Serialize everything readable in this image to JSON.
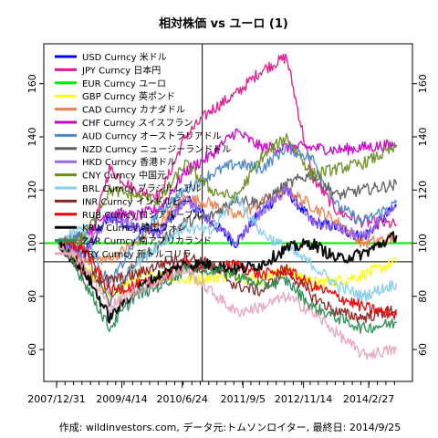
{
  "chart_data": {
    "type": "line",
    "title": "相対株価 vs ユーロ (1)",
    "caption": "作成: wildinvestors.com, データ元:トムソンロイター, 最終日: 2014/9/25",
    "x_ticks": [
      "2007/12/31",
      "2009/4/14",
      "2010/6/24",
      "2011/9/5",
      "2012/11/14",
      "2014/2/27"
    ],
    "x_range": [
      "2007-12-31",
      "2014-09-25"
    ],
    "y_ticks": [
      60,
      80,
      100,
      120,
      140,
      160
    ],
    "ylim": [
      48,
      175
    ],
    "reference_lines": [
      {
        "orientation": "horizontal",
        "value": 100,
        "color": "#00ee00",
        "series": "EUR Curncy ユーロ"
      },
      {
        "orientation": "horizontal",
        "value": 93,
        "color": "#000000"
      },
      {
        "orientation": "vertical",
        "value": "2010-11-15",
        "color": "#000000"
      }
    ],
    "legend_position": "top-left",
    "series": [
      {
        "name": "USD Curncy 米ドル",
        "color": "#0000ff",
        "x": [
          "2008-01",
          "2008-07",
          "2009-01",
          "2009-07",
          "2010-01",
          "2010-07",
          "2011-01",
          "2011-07",
          "2012-01",
          "2012-07",
          "2013-01",
          "2013-07",
          "2014-01",
          "2014-09"
        ],
        "values": [
          100,
          96,
          110,
          106,
          104,
          117,
          108,
          100,
          112,
          120,
          108,
          106,
          102,
          114
        ]
      },
      {
        "name": "JPY Curncy 日本円",
        "color": "#e6198c",
        "x": [
          "2008-01",
          "2008-07",
          "2009-01",
          "2009-07",
          "2010-01",
          "2010-07",
          "2011-01",
          "2011-07",
          "2012-01",
          "2012-07",
          "2013-01",
          "2013-07",
          "2014-01",
          "2014-09"
        ],
        "values": [
          100,
          92,
          128,
          120,
          118,
          140,
          150,
          156,
          165,
          170,
          125,
          112,
          108,
          107
        ]
      },
      {
        "name": "EUR Curncy ユーロ",
        "color": "#00ee00",
        "x": [
          "2008-01",
          "2014-09"
        ],
        "values": [
          100,
          100
        ]
      },
      {
        "name": "GBP Curncy 英ポンド",
        "color": "#ffff00",
        "x": [
          "2008-01",
          "2008-07",
          "2009-01",
          "2009-07",
          "2010-01",
          "2010-07",
          "2011-01",
          "2011-07",
          "2012-01",
          "2012-07",
          "2013-01",
          "2013-07",
          "2014-01",
          "2014-09"
        ],
        "values": [
          100,
          92,
          80,
          87,
          88,
          86,
          87,
          88,
          86,
          90,
          85,
          86,
          88,
          93
        ]
      },
      {
        "name": "CAD Curncy カナダドル",
        "color": "#f0804c",
        "x": [
          "2008-01",
          "2008-07",
          "2009-01",
          "2009-07",
          "2010-01",
          "2010-07",
          "2011-01",
          "2011-07",
          "2012-01",
          "2012-07",
          "2013-01",
          "2013-07",
          "2014-01",
          "2014-09"
        ],
        "values": [
          100,
          94,
          94,
          100,
          108,
          117,
          115,
          110,
          115,
          120,
          114,
          108,
          100,
          102
        ]
      },
      {
        "name": "CHF Curncy スイスフラン",
        "color": "#cc00cc",
        "x": [
          "2008-01",
          "2008-07",
          "2009-01",
          "2009-07",
          "2010-01",
          "2010-07",
          "2011-01",
          "2011-07",
          "2012-01",
          "2012-07",
          "2013-01",
          "2013-07",
          "2014-01",
          "2014-09"
        ],
        "values": [
          100,
          103,
          112,
          110,
          113,
          127,
          133,
          142,
          136,
          136,
          136,
          135,
          136,
          137
        ]
      },
      {
        "name": "AUD Curncy オーストラリアドル",
        "color": "#4a86c8",
        "x": [
          "2008-01",
          "2008-07",
          "2009-01",
          "2009-07",
          "2010-01",
          "2010-07",
          "2011-01",
          "2011-07",
          "2012-01",
          "2012-07",
          "2013-01",
          "2013-07",
          "2014-01",
          "2014-09"
        ],
        "values": [
          100,
          104,
          84,
          100,
          112,
          120,
          126,
          130,
          128,
          136,
          132,
          114,
          108,
          115
        ]
      },
      {
        "name": "NZD Curncy ニュージーランドドル",
        "color": "#606060",
        "x": [
          "2008-01",
          "2008-07",
          "2009-01",
          "2009-07",
          "2010-01",
          "2010-07",
          "2011-01",
          "2011-07",
          "2012-01",
          "2012-07",
          "2013-01",
          "2013-07",
          "2014-01",
          "2014-09"
        ],
        "values": [
          100,
          98,
          78,
          92,
          100,
          108,
          110,
          117,
          115,
          122,
          126,
          118,
          120,
          122
        ]
      },
      {
        "name": "HKD Curncy 香港ドル",
        "color": "#9966ee",
        "x": [
          "2008-01",
          "2008-07",
          "2009-01",
          "2009-07",
          "2010-01",
          "2010-07",
          "2011-01",
          "2011-07",
          "2012-01",
          "2012-07",
          "2013-01",
          "2013-07",
          "2014-01",
          "2014-09"
        ],
        "values": [
          100,
          96,
          110,
          106,
          104,
          117,
          108,
          100,
          112,
          120,
          108,
          106,
          102,
          114
        ]
      },
      {
        "name": "CNY Curncy 中国元",
        "color": "#6b8e23",
        "x": [
          "2008-01",
          "2008-07",
          "2009-01",
          "2009-07",
          "2010-01",
          "2010-07",
          "2011-01",
          "2011-07",
          "2012-01",
          "2012-07",
          "2013-01",
          "2013-07",
          "2014-01",
          "2014-09"
        ],
        "values": [
          100,
          102,
          120,
          118,
          116,
          130,
          120,
          117,
          132,
          140,
          126,
          128,
          130,
          136
        ]
      },
      {
        "name": "BRL Curncy ブラジルレアル",
        "color": "#87ceeb",
        "x": [
          "2008-01",
          "2008-07",
          "2009-01",
          "2009-07",
          "2010-01",
          "2010-07",
          "2011-01",
          "2011-07",
          "2012-01",
          "2012-07",
          "2013-01",
          "2013-07",
          "2014-01",
          "2014-09"
        ],
        "values": [
          100,
          106,
          80,
          92,
          100,
          106,
          104,
          118,
          104,
          98,
          92,
          84,
          80,
          85
        ]
      },
      {
        "name": "INR Curncy インドルピー",
        "color": "#8b2323",
        "x": [
          "2008-01",
          "2008-07",
          "2009-01",
          "2009-07",
          "2010-01",
          "2010-07",
          "2011-01",
          "2011-07",
          "2012-01",
          "2012-07",
          "2013-01",
          "2013-07",
          "2014-01",
          "2014-09"
        ],
        "values": [
          100,
          88,
          86,
          88,
          92,
          95,
          92,
          84,
          82,
          90,
          80,
          74,
          72,
          75
        ]
      },
      {
        "name": "RUB Curncy ロシアルーブル",
        "color": "#ee0000",
        "x": [
          "2008-01",
          "2008-07",
          "2009-01",
          "2009-07",
          "2010-01",
          "2010-07",
          "2011-01",
          "2011-07",
          "2012-01",
          "2012-07",
          "2013-01",
          "2013-07",
          "2014-01",
          "2014-09"
        ],
        "values": [
          100,
          98,
          82,
          84,
          86,
          92,
          90,
          92,
          88,
          90,
          84,
          80,
          76,
          73
        ]
      },
      {
        "name": "KRW Curncy 韓国ウォン",
        "color": "#000000",
        "x": [
          "2008-01",
          "2008-07",
          "2009-01",
          "2009-07",
          "2010-01",
          "2010-07",
          "2011-01",
          "2011-07",
          "2012-01",
          "2012-07",
          "2013-01",
          "2013-07",
          "2014-01",
          "2014-09"
        ],
        "values": [
          100,
          90,
          72,
          82,
          88,
          92,
          92,
          90,
          92,
          98,
          100,
          94,
          96,
          103
        ]
      },
      {
        "name": "ZAR Curncy 南アフリカランド",
        "color": "#2e8b57",
        "x": [
          "2008-01",
          "2008-07",
          "2009-01",
          "2009-07",
          "2010-01",
          "2010-07",
          "2011-01",
          "2011-07",
          "2012-01",
          "2012-07",
          "2013-01",
          "2013-07",
          "2014-01",
          "2014-09"
        ],
        "values": [
          100,
          86,
          68,
          80,
          84,
          90,
          90,
          88,
          84,
          86,
          76,
          72,
          68,
          70
        ]
      },
      {
        "name": "TRY Curncy 新トルコリラ",
        "color": "#e8a8b8",
        "x": [
          "2008-01",
          "2008-07",
          "2009-01",
          "2009-07",
          "2010-01",
          "2010-07",
          "2011-01",
          "2011-07",
          "2012-01",
          "2012-07",
          "2013-01",
          "2013-07",
          "2014-01",
          "2014-09"
        ],
        "values": [
          100,
          92,
          76,
          82,
          86,
          90,
          82,
          74,
          76,
          80,
          74,
          66,
          58,
          60
        ]
      }
    ]
  }
}
